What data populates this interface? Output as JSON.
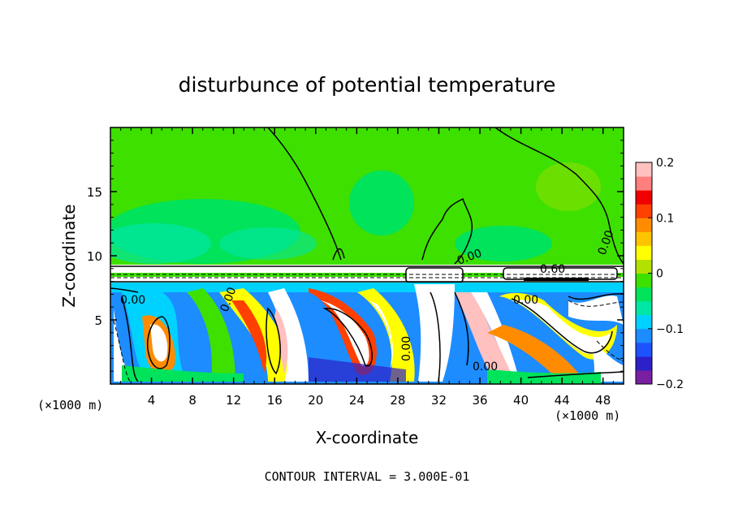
{
  "chart_data": {
    "type": "heatmap",
    "title": "disturbunce of potential temperature",
    "xlabel": "X-coordinate",
    "ylabel": "Z-coordinate",
    "x_unit_left": "(×1000 m)",
    "x_unit_right": "(×1000 m)",
    "xlim": [
      0,
      50
    ],
    "ylim": [
      0,
      20
    ],
    "x_ticks": [
      4,
      8,
      12,
      16,
      20,
      24,
      28,
      32,
      36,
      40,
      44,
      48
    ],
    "y_ticks": [
      5,
      10,
      15
    ],
    "colorbar": {
      "min": -0.2,
      "max": 0.2,
      "ticks": [
        0.2,
        0.1,
        0,
        -0.1,
        -0.2
      ],
      "tick_labels": [
        "0.2",
        "0.1",
        "0",
        "−0.1",
        "−0.2"
      ],
      "colors": [
        "#7b1fa2",
        "#2e20c8",
        "#1e52ff",
        "#1d8cff",
        "#00d2ff",
        "#00e6a5",
        "#00e35a",
        "#3ee000",
        "#b4e000",
        "#ffff00",
        "#ffc400",
        "#ff8c00",
        "#ff4000",
        "#f00000",
        "#ff7f7f",
        "#ffc0c0"
      ]
    },
    "contour_labels": [
      "0.00",
      "0.00",
      "0.00",
      "0.00",
      "0.00",
      "0.00",
      "0.00",
      "0.60"
    ],
    "footer": "CONTOUR INTERVAL = 3.000E-01"
  }
}
